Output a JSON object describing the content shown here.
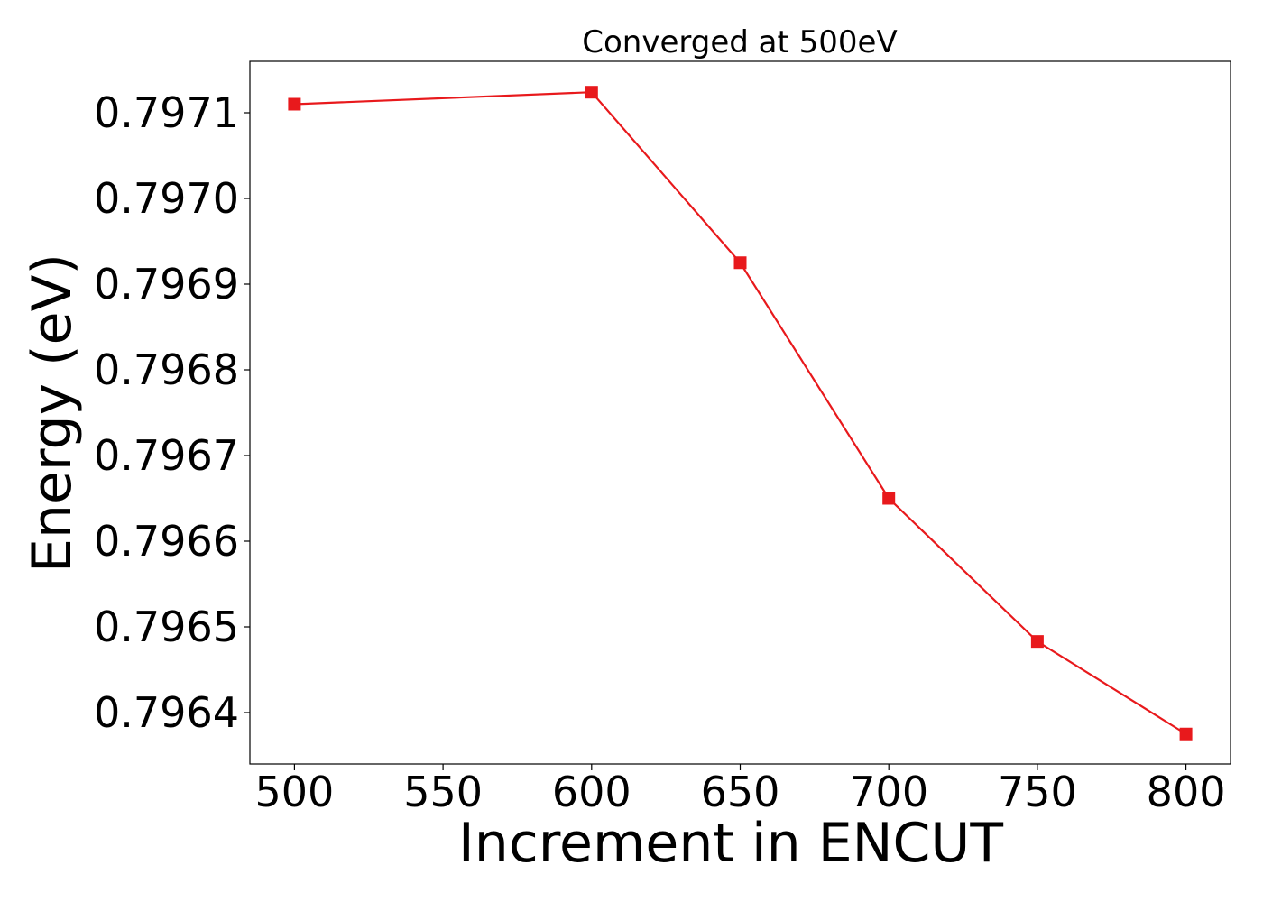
{
  "chart_data": {
    "type": "line",
    "title": "Converged at 500eV",
    "xlabel": "Increment in ENCUT",
    "ylabel": "Energy (eV)",
    "x": [
      500,
      600,
      650,
      700,
      750,
      800
    ],
    "series": [
      {
        "values": [
          0.79711,
          0.797124,
          0.796925,
          0.79665,
          0.796483,
          0.796375
        ],
        "color": "#e8191c",
        "marker": "square"
      }
    ],
    "xlim": [
      485,
      815
    ],
    "ylim": [
      0.79634,
      0.79716
    ],
    "xticks": [
      500,
      550,
      600,
      650,
      700,
      750,
      800
    ],
    "xtick_labels": [
      "500",
      "550",
      "600",
      "650",
      "700",
      "750",
      "800"
    ],
    "yticks": [
      0.7964,
      0.7965,
      0.7966,
      0.7967,
      0.7968,
      0.7969,
      0.797,
      0.7971
    ],
    "ytick_labels": [
      "0.7964",
      "0.7965",
      "0.7966",
      "0.7967",
      "0.7968",
      "0.7969",
      "0.7970",
      "0.7971"
    ],
    "grid": false,
    "legend": "none"
  }
}
